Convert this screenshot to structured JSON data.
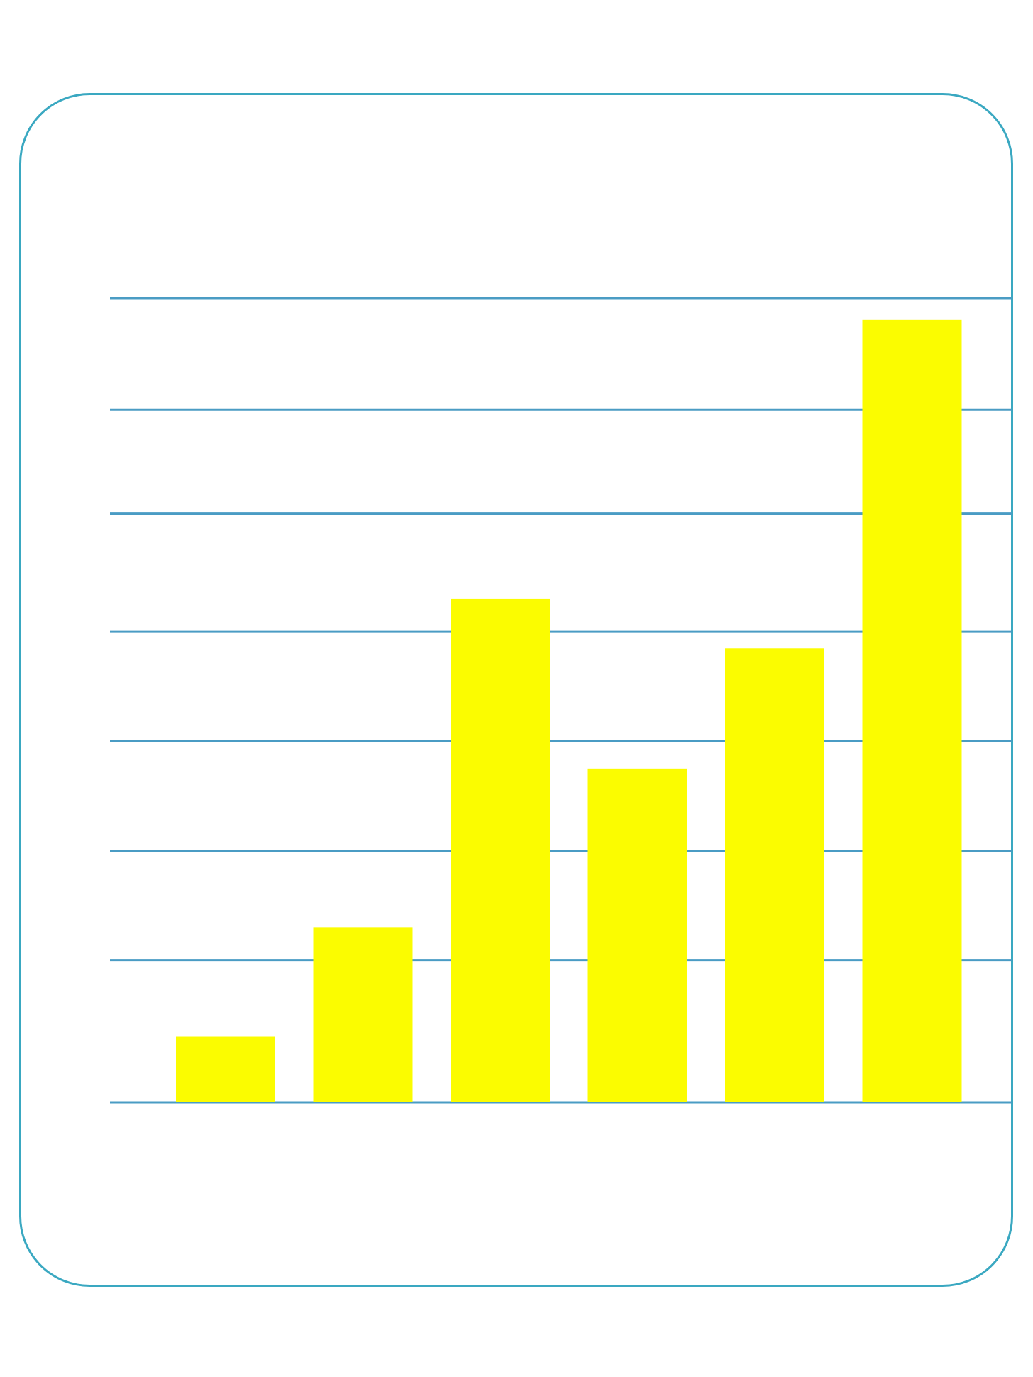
{
  "colors": {
    "frame": "#3aa8c1",
    "gridline": "#4a9cc4",
    "bar": "#fbfc00",
    "background": "#ffffff"
  },
  "chart_data": {
    "type": "bar",
    "title": "",
    "xlabel": "",
    "ylabel": "",
    "categories": [
      "",
      "",
      "",
      "",
      "",
      ""
    ],
    "values": [
      0.6,
      1.6,
      4.6,
      3.05,
      4.15,
      7.15
    ],
    "ylim": [
      0,
      7.35
    ],
    "gridline_values": [
      0,
      1.3,
      2.3,
      3.3,
      4.3,
      5.38,
      6.33,
      7.35
    ],
    "grid": true,
    "legend": "none"
  }
}
